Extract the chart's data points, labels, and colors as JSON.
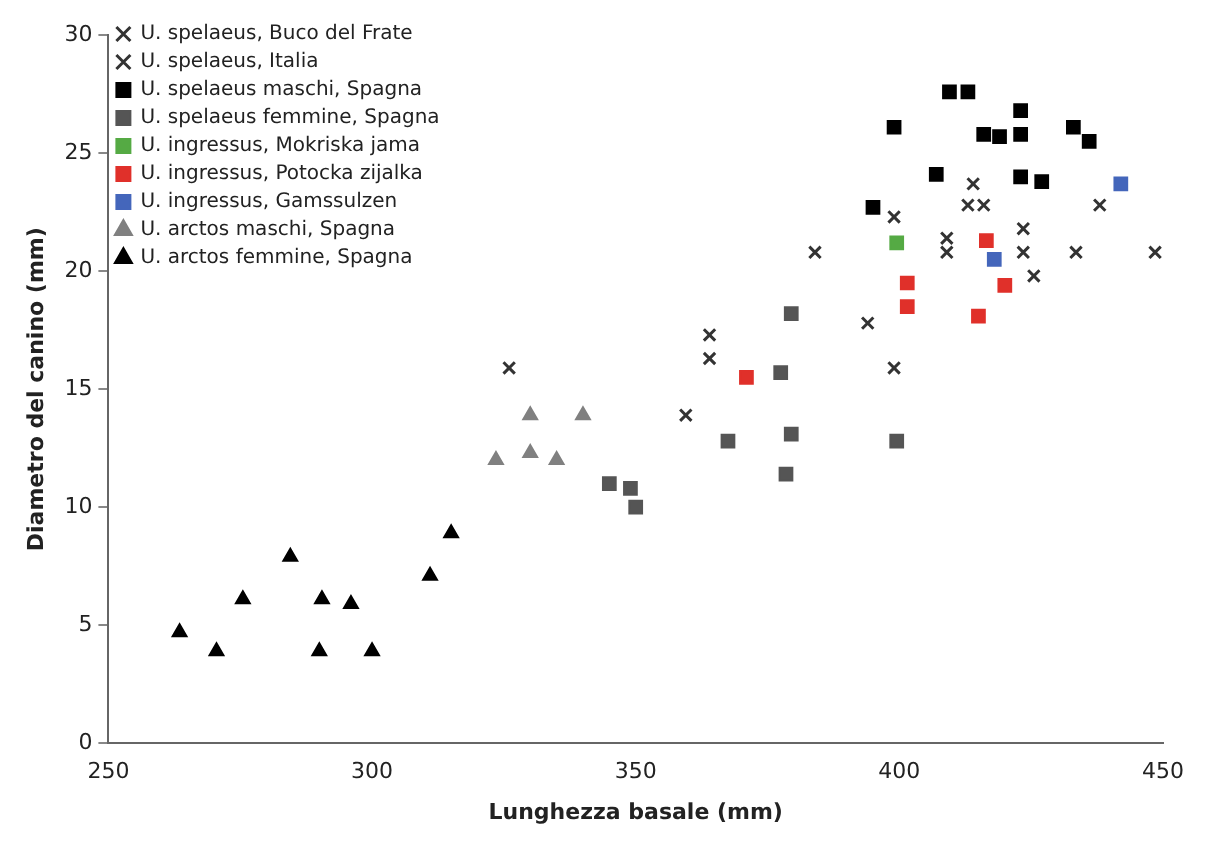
{
  "chart_data": {
    "type": "scatter",
    "xlabel": "Lunghezza basale (mm)",
    "ylabel": "Diametro del canino (mm)",
    "xlim": [
      250,
      450
    ],
    "xticks": [
      250,
      300,
      350,
      400,
      450
    ],
    "ylim": [
      0,
      30
    ],
    "yticks": [
      0,
      5,
      10,
      15,
      20,
      25,
      30
    ],
    "grid": false,
    "legend": "top left",
    "series": [
      {
        "name": "U. spelaeus, Buco del Frate",
        "color": "#333333",
        "marker": "cross",
        "x": [
          414,
          399,
          423.5,
          425.5,
          413,
          416
        ],
        "values": [
          23.7,
          22.3,
          20.8,
          19.8,
          22.8,
          22.8
        ]
      },
      {
        "name": "U. spelaeus, Italia",
        "color": "#333333",
        "marker": "cross",
        "x": [
          438,
          423.5,
          433.5,
          448.5,
          384,
          394,
          399,
          364,
          364,
          359.5,
          326,
          409,
          409
        ],
        "values": [
          22.8,
          21.8,
          20.8,
          20.8,
          20.8,
          17.8,
          15.9,
          17.3,
          16.3,
          13.9,
          15.9,
          21.4,
          20.8
        ]
      },
      {
        "name": "U. spelaeus maschi, Spagna",
        "color": "#000000",
        "marker": "square",
        "x": [
          409.5,
          413,
          399,
          416,
          419,
          423,
          423,
          433,
          436,
          407,
          423,
          427,
          395
        ],
        "values": [
          27.6,
          27.6,
          26.1,
          25.8,
          25.7,
          26.8,
          25.8,
          26.1,
          25.5,
          24.1,
          24,
          23.8,
          22.7
        ]
      },
      {
        "name": "U. spelaeus femmine, Spagna",
        "color": "#555555",
        "marker": "square",
        "x": [
          379.5,
          377.5,
          367.5,
          379.5,
          399.5,
          378.5,
          345,
          349,
          350
        ],
        "values": [
          18.2,
          15.7,
          12.8,
          13.1,
          12.8,
          11.4,
          11,
          10.8,
          10
        ]
      },
      {
        "name": "U. ingressus, Mokriska jama",
        "color": "#55aa44",
        "marker": "square",
        "x": [
          399.5
        ],
        "values": [
          21.2
        ]
      },
      {
        "name": "U. ingressus, Potocka zijalka",
        "color": "#e0302a",
        "marker": "square",
        "x": [
          371,
          401.5,
          401.5,
          416.5,
          420,
          415
        ],
        "values": [
          15.5,
          19.5,
          18.5,
          21.3,
          19.4,
          18.1
        ]
      },
      {
        "name": "U. ingressus, Gamssulzen",
        "color": "#4466bb",
        "marker": "square",
        "x": [
          418,
          442
        ],
        "values": [
          20.5,
          23.7
        ]
      },
      {
        "name": "U. arctos maschi, Spagna",
        "color": "#808080",
        "marker": "triangle",
        "x": [
          323.5,
          330,
          335,
          330,
          340
        ],
        "values": [
          12,
          12.3,
          12,
          13.9,
          13.9
        ]
      },
      {
        "name": "U. arctos femmine, Spagna",
        "color": "#000000",
        "marker": "triangle",
        "x": [
          263.5,
          270.5,
          275.5,
          284.5,
          290.5,
          290,
          296,
          300,
          311,
          315
        ],
        "values": [
          4.7,
          3.9,
          6.1,
          7.9,
          6.1,
          3.9,
          5.9,
          3.9,
          7.1,
          8.9
        ]
      }
    ]
  }
}
